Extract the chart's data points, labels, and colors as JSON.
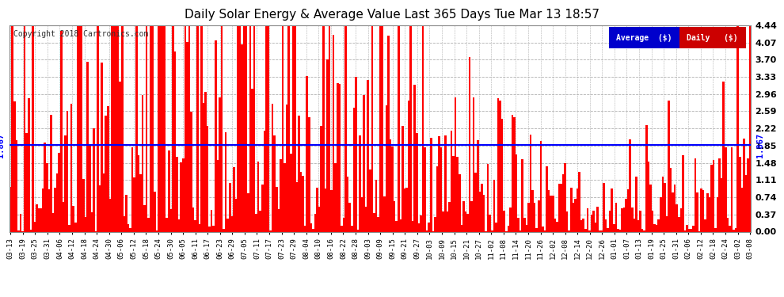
{
  "title": "Daily Solar Energy & Average Value Last 365 Days Tue Mar 13 18:57",
  "copyright": "Copyright 2018 Cartronics.com",
  "average_value": 1.867,
  "average_label": "1.867",
  "bar_color": "#ff0000",
  "average_line_color": "#0000ff",
  "background_color": "#ffffff",
  "plot_bg_color": "#ffffff",
  "grid_color": "#b0b0b0",
  "ylim": [
    0,
    4.44
  ],
  "yticks": [
    0.0,
    0.37,
    0.74,
    1.11,
    1.48,
    1.85,
    2.22,
    2.59,
    2.96,
    3.33,
    3.7,
    4.07,
    4.44
  ],
  "legend_avg_color": "#0000cc",
  "legend_daily_color": "#cc0000",
  "legend_avg_text": "Average  ($)",
  "legend_daily_text": "Daily   ($)",
  "x_labels": [
    "03-13",
    "03-19",
    "03-25",
    "03-31",
    "04-06",
    "04-12",
    "04-18",
    "04-24",
    "04-30",
    "05-06",
    "05-12",
    "05-18",
    "05-24",
    "05-30",
    "06-05",
    "06-11",
    "06-17",
    "06-23",
    "06-29",
    "07-05",
    "07-11",
    "07-17",
    "07-23",
    "07-29",
    "08-04",
    "08-10",
    "08-16",
    "08-22",
    "08-28",
    "09-03",
    "09-09",
    "09-15",
    "09-21",
    "09-27",
    "10-03",
    "10-09",
    "10-15",
    "10-21",
    "10-27",
    "11-02",
    "11-08",
    "11-14",
    "11-20",
    "11-26",
    "12-02",
    "12-08",
    "12-14",
    "12-20",
    "12-26",
    "01-01",
    "01-07",
    "01-13",
    "01-19",
    "01-25",
    "01-31",
    "02-06",
    "02-12",
    "02-18",
    "02-24",
    "03-02",
    "03-08"
  ],
  "n_bars": 365,
  "seed": 42
}
